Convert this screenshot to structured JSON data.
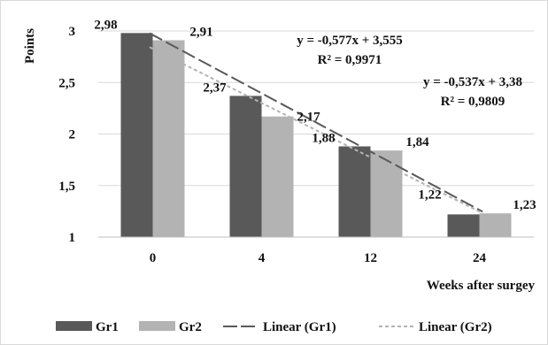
{
  "chart_data": {
    "type": "bar",
    "categories": [
      "0",
      "4",
      "12",
      "24"
    ],
    "series": [
      {
        "name": "Gr1",
        "values": [
          2.98,
          2.37,
          1.88,
          1.22
        ],
        "labels": [
          "2,98",
          "2,37",
          "1,88",
          "1,22"
        ],
        "color": "#595959"
      },
      {
        "name": "Gr2",
        "values": [
          2.91,
          2.17,
          1.84,
          1.23
        ],
        "labels": [
          "2,91",
          "2,17",
          "1,84",
          "1,23"
        ],
        "color": "#b3b3b3"
      }
    ],
    "trendlines": [
      {
        "name": "Linear (Gr1)",
        "slope": -0.577,
        "intercept": 3.555,
        "color": "#595959",
        "dash": "long-dash"
      },
      {
        "name": "Linear (Gr2)",
        "slope": -0.537,
        "intercept": 3.38,
        "color": "#b3b3b3",
        "dash": "short-dash"
      }
    ],
    "annotations": [
      {
        "equation": "y = -0,577x + 3,555",
        "r2": "R² = 0,9971"
      },
      {
        "equation": "y = -0,537x + 3,38",
        "r2": "R² = 0,9809"
      }
    ],
    "xlabel": "Weeks after  surgey",
    "ylabel": "Points",
    "ylim": [
      1,
      3
    ],
    "yticks": [
      1,
      1.5,
      2,
      2.5,
      3
    ],
    "ytick_labels": [
      "1",
      "1,5",
      "2",
      "2,5",
      "3"
    ],
    "grid": true,
    "legend": "bottom",
    "legend_entries": [
      "Gr1",
      "Gr2",
      "Linear (Gr1)",
      "Linear (Gr2)"
    ]
  }
}
